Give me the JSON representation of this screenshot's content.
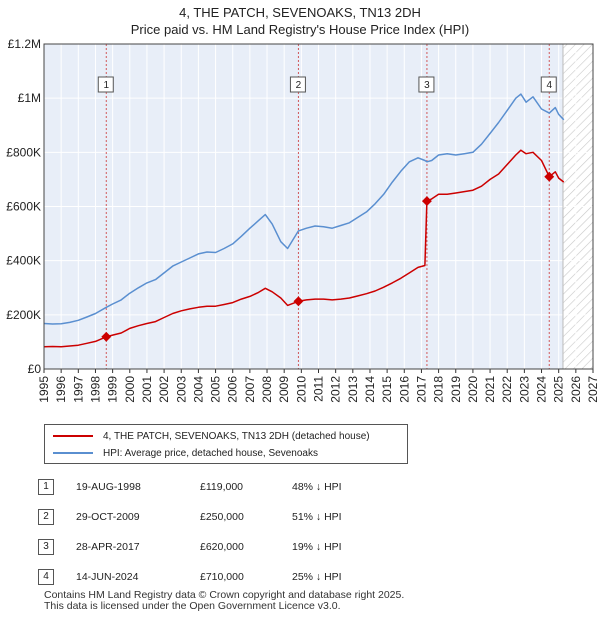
{
  "header": {
    "title": "4, THE PATCH, SEVENOAKS, TN13 2DH",
    "subtitle": "Price paid vs. HM Land Registry's House Price Index (HPI)"
  },
  "chart_data": {
    "type": "line",
    "title": "4, THE PATCH, SEVENOAKS, TN13 2DH",
    "subtitle": "Price paid vs. HM Land Registry's House Price Index (HPI)",
    "xlim": [
      1995,
      2027
    ],
    "ylim": [
      0,
      1200000
    ],
    "x_ticks": [
      "1995",
      "1996",
      "1997",
      "1998",
      "1999",
      "2000",
      "2001",
      "2002",
      "2003",
      "2004",
      "2005",
      "2006",
      "2007",
      "2008",
      "2009",
      "2010",
      "2011",
      "2012",
      "2013",
      "2014",
      "2015",
      "2016",
      "2017",
      "2018",
      "2019",
      "2020",
      "2021",
      "2022",
      "2023",
      "2024",
      "2025",
      "2026",
      "2027"
    ],
    "y_ticks": [
      {
        "value": 0,
        "label": "£0"
      },
      {
        "value": 200000,
        "label": "£200K"
      },
      {
        "value": 400000,
        "label": "£400K"
      },
      {
        "value": 600000,
        "label": "£600K"
      },
      {
        "value": 800000,
        "label": "£800K"
      },
      {
        "value": 1000000,
        "label": "£1M"
      },
      {
        "value": 1200000,
        "label": "£1.2M"
      }
    ],
    "grid": true,
    "forecast_from": 2025.25,
    "series": [
      {
        "name": "4, THE PATCH, SEVENOAKS, TN13 2DH (detached house)",
        "color": "#cc0000",
        "x": [
          1995.0,
          1995.5,
          1996.0,
          1996.5,
          1997.0,
          1997.5,
          1998.0,
          1998.63,
          1999.0,
          1999.5,
          2000.0,
          2000.5,
          2001.0,
          2001.5,
          2002.0,
          2002.5,
          2003.0,
          2003.5,
          2004.0,
          2004.5,
          2005.0,
          2005.5,
          2006.0,
          2006.5,
          2007.0,
          2007.5,
          2007.9,
          2008.3,
          2008.8,
          2009.2,
          2009.83,
          2010.3,
          2010.8,
          2011.3,
          2011.8,
          2012.3,
          2012.8,
          2013.3,
          2013.8,
          2014.3,
          2014.8,
          2015.3,
          2015.8,
          2016.3,
          2016.8,
          2017.2,
          2017.32,
          2017.6,
          2018.0,
          2018.5,
          2019.0,
          2019.5,
          2020.0,
          2020.5,
          2021.0,
          2021.5,
          2022.0,
          2022.5,
          2022.8,
          2023.1,
          2023.5,
          2024.0,
          2024.45,
          2024.8,
          2025.0,
          2025.3
        ],
        "y": [
          82000,
          83000,
          82000,
          85000,
          88000,
          95000,
          102000,
          119000,
          125000,
          133000,
          150000,
          160000,
          168000,
          175000,
          190000,
          205000,
          215000,
          222000,
          228000,
          232000,
          232000,
          238000,
          245000,
          258000,
          268000,
          283000,
          298000,
          285000,
          262000,
          235000,
          250000,
          255000,
          258000,
          258000,
          255000,
          258000,
          262000,
          270000,
          278000,
          288000,
          302000,
          318000,
          335000,
          355000,
          375000,
          382000,
          620000,
          628000,
          645000,
          645000,
          650000,
          655000,
          660000,
          675000,
          700000,
          720000,
          755000,
          790000,
          808000,
          795000,
          800000,
          770000,
          710000,
          728000,
          705000,
          690000
        ]
      },
      {
        "name": "HPI: Average price, detached house, Sevenoaks",
        "color": "#5a8fd0",
        "x": [
          1995.0,
          1995.5,
          1996.0,
          1996.5,
          1997.0,
          1997.5,
          1998.0,
          1998.63,
          1999.0,
          1999.5,
          2000.0,
          2000.5,
          2001.0,
          2001.5,
          2002.0,
          2002.5,
          2003.0,
          2003.5,
          2004.0,
          2004.5,
          2005.0,
          2005.5,
          2006.0,
          2006.5,
          2007.0,
          2007.5,
          2007.9,
          2008.3,
          2008.8,
          2009.2,
          2009.83,
          2010.3,
          2010.8,
          2011.3,
          2011.8,
          2012.3,
          2012.8,
          2013.3,
          2013.8,
          2014.3,
          2014.8,
          2015.3,
          2015.8,
          2016.3,
          2016.8,
          2017.2,
          2017.32,
          2017.6,
          2018.0,
          2018.5,
          2019.0,
          2019.5,
          2020.0,
          2020.5,
          2021.0,
          2021.5,
          2022.0,
          2022.5,
          2022.8,
          2023.1,
          2023.5,
          2024.0,
          2024.45,
          2024.8,
          2025.0,
          2025.3
        ],
        "y": [
          168000,
          166000,
          167000,
          172000,
          180000,
          192000,
          205000,
          228000,
          240000,
          255000,
          280000,
          300000,
          318000,
          330000,
          355000,
          380000,
          395000,
          410000,
          425000,
          432000,
          430000,
          445000,
          462000,
          490000,
          520000,
          548000,
          570000,
          535000,
          470000,
          445000,
          510000,
          520000,
          528000,
          525000,
          520000,
          530000,
          540000,
          560000,
          580000,
          610000,
          645000,
          690000,
          730000,
          765000,
          780000,
          770000,
          765000,
          770000,
          790000,
          795000,
          790000,
          795000,
          800000,
          830000,
          870000,
          910000,
          955000,
          1000000,
          1015000,
          985000,
          1005000,
          960000,
          945000,
          965000,
          940000,
          920000
        ]
      }
    ],
    "markers": [
      {
        "label": "1",
        "x": 1998.63,
        "y": 119000
      },
      {
        "label": "2",
        "x": 2009.83,
        "y": 250000
      },
      {
        "label": "3",
        "x": 2017.32,
        "y": 620000
      },
      {
        "label": "4",
        "x": 2024.45,
        "y": 710000
      }
    ]
  },
  "legend": {
    "property": "4, THE PATCH, SEVENOAKS, TN13 2DH (detached house)",
    "hpi": "HPI: Average price, detached house, Sevenoaks"
  },
  "transactions": [
    {
      "num": "1",
      "date": "19-AUG-1998",
      "price": "£119,000",
      "hpi": "48% ↓ HPI"
    },
    {
      "num": "2",
      "date": "29-OCT-2009",
      "price": "£250,000",
      "hpi": "51% ↓ HPI"
    },
    {
      "num": "3",
      "date": "28-APR-2017",
      "price": "£620,000",
      "hpi": "19% ↓ HPI"
    },
    {
      "num": "4",
      "date": "14-JUN-2024",
      "price": "£710,000",
      "hpi": "25% ↓ HPI"
    }
  ],
  "footer": {
    "line1": "Contains HM Land Registry data © Crown copyright and database right 2025.",
    "line2": "This data is licensed under the Open Government Licence v3.0."
  }
}
